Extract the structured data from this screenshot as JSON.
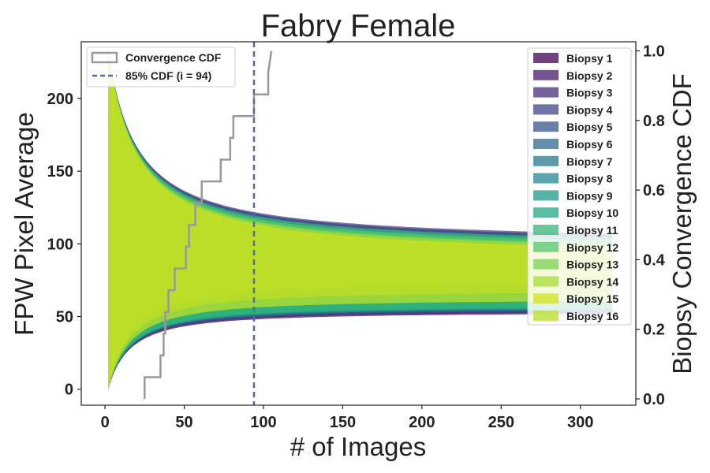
{
  "chart_data": {
    "type": "area",
    "title": "Fabry Female",
    "xlabel": "# of Images",
    "ylabel": "FPW Pixel Average",
    "y2label": "Biopsy Convergence CDF",
    "xlim": [
      -15,
      335
    ],
    "ylim": [
      -11,
      239
    ],
    "y2lim": [
      -0.018,
      1.026
    ],
    "xticks": [
      0,
      50,
      100,
      150,
      200,
      250,
      300
    ],
    "yticks": [
      0,
      50,
      100,
      150,
      200
    ],
    "y2ticks": [
      0.0,
      0.2,
      0.4,
      0.6,
      0.8,
      1.0
    ],
    "y2tick_labels": [
      "0.0",
      "0.2",
      "0.4",
      "0.6",
      "0.8",
      "1.0"
    ],
    "grid": false,
    "legend_right_position": "upper right",
    "legend_left_position": "upper left",
    "series": [
      {
        "name": "Biopsy 1",
        "color": "#440154",
        "upper_final": 96,
        "lower_final": 53,
        "end_x": 320
      },
      {
        "name": "Biopsy 2",
        "color": "#481a6c",
        "upper_final": 95,
        "lower_final": 54,
        "end_x": 320
      },
      {
        "name": "Biopsy 3",
        "color": "#472f7d",
        "upper_final": 99,
        "lower_final": 55,
        "end_x": 320
      },
      {
        "name": "Biopsy 4",
        "color": "#414487",
        "upper_final": 100,
        "lower_final": 54,
        "end_x": 320
      },
      {
        "name": "Biopsy 5",
        "color": "#39568c",
        "upper_final": 98,
        "lower_final": 56,
        "end_x": 320
      },
      {
        "name": "Biopsy 6",
        "color": "#31688e",
        "upper_final": 97,
        "lower_final": 55,
        "end_x": 320
      },
      {
        "name": "Biopsy 7",
        "color": "#2a788e",
        "upper_final": 96,
        "lower_final": 57,
        "end_x": 320
      },
      {
        "name": "Biopsy 8",
        "color": "#23888e",
        "upper_final": 95,
        "lower_final": 58,
        "end_x": 320
      },
      {
        "name": "Biopsy 9",
        "color": "#1f988b",
        "upper_final": 95,
        "lower_final": 56,
        "end_x": 320
      },
      {
        "name": "Biopsy 10",
        "color": "#22a884",
        "upper_final": 94,
        "lower_final": 58,
        "end_x": 320
      },
      {
        "name": "Biopsy 11",
        "color": "#35b779",
        "upper_final": 97,
        "lower_final": 57,
        "end_x": 320
      },
      {
        "name": "Biopsy 12",
        "color": "#54c568",
        "upper_final": 95,
        "lower_final": 62,
        "end_x": 320
      },
      {
        "name": "Biopsy 13",
        "color": "#7ad151",
        "upper_final": 93,
        "lower_final": 76,
        "end_x": 320
      },
      {
        "name": "Biopsy 14",
        "color": "#a5db36",
        "upper_final": 92,
        "lower_final": 73,
        "end_x": 320
      },
      {
        "name": "Biopsy 15",
        "color": "#d2e21b",
        "upper_final": 90,
        "lower_final": 68,
        "end_x": 320
      },
      {
        "name": "Biopsy 16",
        "color": "#b8de29",
        "upper_final": 88,
        "lower_final": 62,
        "end_x": 320
      }
    ],
    "cdf_line": {
      "name": "Convergence CDF",
      "color": "#999999",
      "x": [
        25,
        25,
        35,
        35,
        37,
        37,
        38,
        38,
        40,
        40,
        44,
        44,
        51,
        51,
        53,
        53,
        57,
        57,
        61,
        61,
        73,
        73,
        79,
        79,
        81,
        81,
        94,
        94,
        103,
        103,
        105
      ],
      "cdf": [
        0.0,
        0.0625,
        0.0625,
        0.125,
        0.125,
        0.1875,
        0.1875,
        0.25,
        0.25,
        0.3125,
        0.3125,
        0.375,
        0.375,
        0.4375,
        0.4375,
        0.5,
        0.5,
        0.5625,
        0.5625,
        0.625,
        0.625,
        0.6875,
        0.6875,
        0.75,
        0.75,
        0.8125,
        0.8125,
        0.875,
        0.875,
        0.9375,
        1.0
      ]
    },
    "threshold_line": {
      "name": "85% CDF (i = 94)",
      "x": 94,
      "color": "#4a6fa5"
    }
  }
}
